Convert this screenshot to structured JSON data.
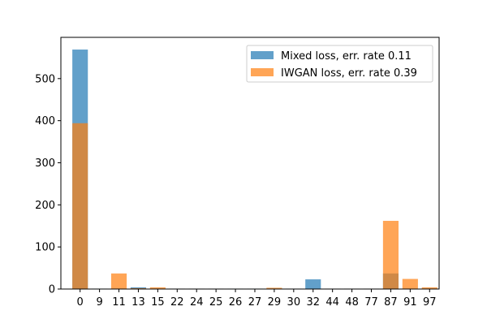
{
  "chart_data": {
    "type": "bar",
    "title": "",
    "xlabel": "",
    "ylabel": "",
    "categories": [
      "0",
      "9",
      "11",
      "13",
      "15",
      "22",
      "24",
      "25",
      "26",
      "27",
      "29",
      "30",
      "32",
      "44",
      "48",
      "77",
      "87",
      "91",
      "97"
    ],
    "ylim": [
      0,
      598
    ],
    "yticks": [
      0,
      100,
      200,
      300,
      400,
      500
    ],
    "legend_position": "top-right",
    "grid": false,
    "series": [
      {
        "name": "Mixed loss, err. rate 0.11",
        "color": "#1f77b4",
        "values": [
          569,
          1,
          0,
          4,
          1,
          1,
          1,
          1,
          1,
          1,
          1,
          1,
          23,
          1,
          1,
          1,
          37,
          0,
          1
        ]
      },
      {
        "name": "IWGAN loss, err. rate 0.39",
        "color": "#ff7f0e",
        "values": [
          394,
          0,
          37,
          2,
          4,
          1,
          1,
          1,
          0,
          0,
          3,
          1,
          0,
          1,
          1,
          1,
          162,
          24,
          4
        ]
      }
    ]
  }
}
